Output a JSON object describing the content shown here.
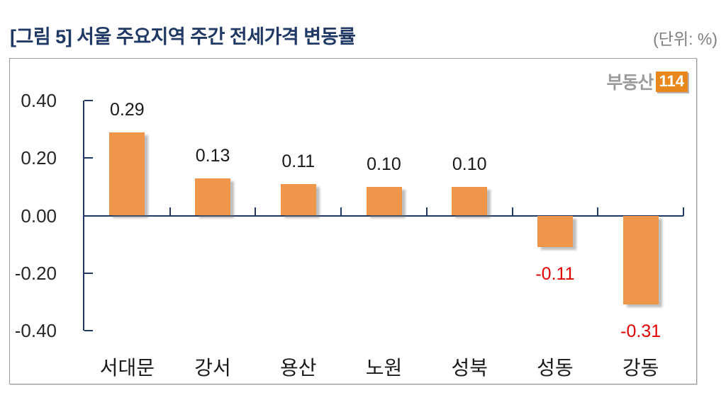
{
  "header": {
    "title": "[그림 5] 서울 주요지역 주간 전세가격 변동률",
    "unit_label": "(단위: %)"
  },
  "logo": {
    "text": "부동산",
    "badge": "114"
  },
  "chart_data": {
    "type": "bar",
    "title": "[그림 5] 서울 주요지역 주간 전세가격 변동률",
    "unit": "%",
    "categories": [
      "서대문",
      "강서",
      "용산",
      "노원",
      "성북",
      "성동",
      "강동"
    ],
    "values": [
      0.29,
      0.13,
      0.11,
      0.1,
      0.1,
      -0.11,
      -0.31
    ],
    "value_labels": [
      "0.29",
      "0.13",
      "0.11",
      "0.10",
      "0.10",
      "-0.11",
      "-0.31"
    ],
    "y_ticks": [
      {
        "label": "0.40",
        "value": 0.4
      },
      {
        "label": "0.20",
        "value": 0.2
      },
      {
        "label": "0.00",
        "value": 0.0
      },
      {
        "label": "-0.20",
        "value": -0.2
      },
      {
        "label": "-0.40",
        "value": -0.4
      }
    ],
    "ylim": [
      -0.4,
      0.4
    ],
    "grid": false,
    "legend": false,
    "colors": {
      "bar": "#F0964B",
      "axis": "#1F3864",
      "positive_label": "#1A1A1A",
      "negative_label": "#E00000",
      "title": "#1F3864",
      "unit_text": "#7F7F7F",
      "logo_badge": "#E8881C"
    }
  }
}
